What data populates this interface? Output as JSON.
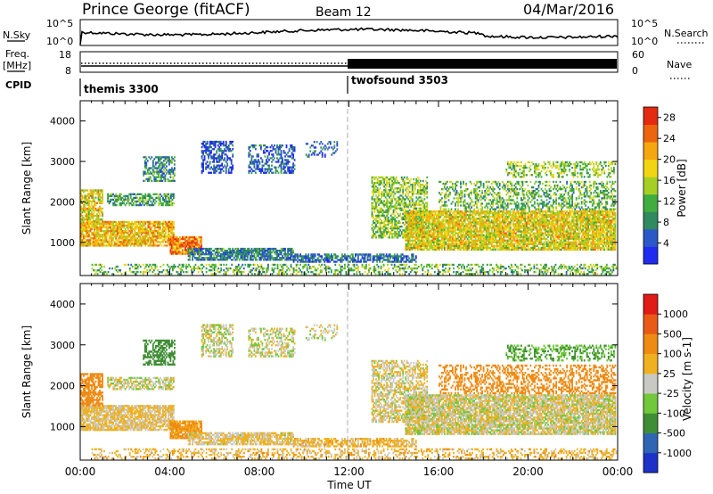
{
  "header": {
    "title": "Prince George (fitACF)",
    "beam": "Beam 12",
    "date": "04/Mar/2016"
  },
  "top_panels": {
    "nsky_label": "N.Sky",
    "nsearch_label": "N.Search",
    "nsky_ticks": [
      "10^5",
      "10^0"
    ],
    "nsearch_ticks": [
      "10^5",
      "10^0"
    ],
    "freq_label": "Freq.",
    "freq_unit": "[MHz]",
    "freq_ticks": [
      "18",
      "8"
    ],
    "nave_ticks": [
      "60",
      "0"
    ],
    "nave_label": "Nave",
    "cpid_label": "CPID",
    "cpid_segments": [
      {
        "name": "themis 3300",
        "start": 0
      },
      {
        "name": "twofsound 3503",
        "start": 12
      }
    ]
  },
  "chart_data": [
    {
      "type": "heatmap",
      "quantity": "Power",
      "ylabel": "Slant Range [km]",
      "xlabel": "",
      "xlim": [
        0,
        24
      ],
      "ylim": [
        180,
        4500
      ],
      "yticks": [
        "1000",
        "2000",
        "3000",
        "4000"
      ],
      "colorbar": {
        "label": "Power [dB]",
        "ticks": [
          "4",
          "8",
          "12",
          "16",
          "20",
          "24",
          "28"
        ],
        "range": [
          0,
          30
        ],
        "colors": [
          "#1f2cf0",
          "#2a58c8",
          "#2f8a5f",
          "#3fae3f",
          "#a6cf23",
          "#f3d412",
          "#f6a60f",
          "#ee6510",
          "#e52a12"
        ]
      }
    },
    {
      "type": "heatmap",
      "quantity": "Velocity",
      "ylabel": "Slant Range [km]",
      "xlabel": "Time UT",
      "xlim": [
        0,
        24
      ],
      "ylim": [
        180,
        4500
      ],
      "yticks": [
        "1000",
        "2000",
        "3000",
        "4000"
      ],
      "xticks": [
        "00:00",
        "04:00",
        "08:00",
        "12:00",
        "16:00",
        "20:00",
        "00:00"
      ],
      "colorbar": {
        "label": "Velocity [m s-1]",
        "ticks": [
          "1000",
          "500",
          "100",
          "25",
          "-25",
          "-100",
          "-500",
          "-1000"
        ],
        "colors": [
          "#1c32c8",
          "#2e66b4",
          "#3f8e35",
          "#70c83a",
          "#c9c9c3",
          "#f0b11f",
          "#ef8b13",
          "#ea5a17",
          "#e11b16"
        ]
      }
    }
  ]
}
